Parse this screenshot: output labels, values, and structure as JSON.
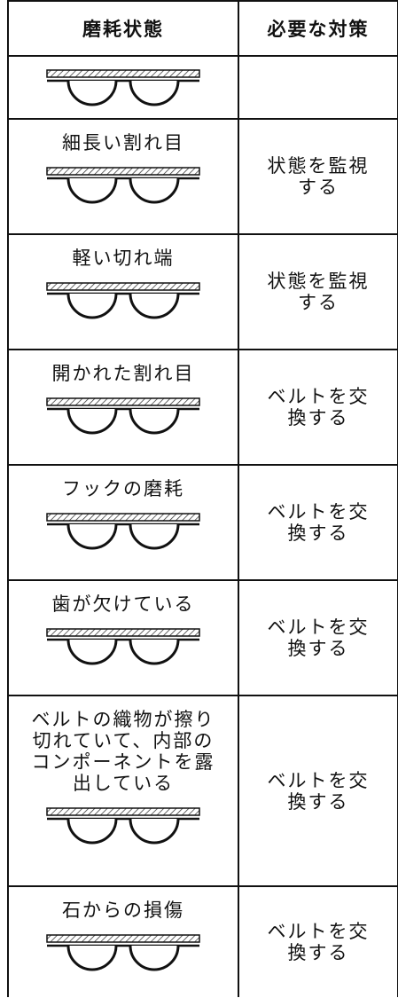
{
  "header": {
    "columns": [
      "磨耗状態",
      "必要な対策"
    ]
  },
  "rows": [
    {},
    {
      "condition": "細長い割れ目",
      "action": "状態を監視する"
    },
    {
      "condition": "軽い切れ端",
      "action": "状態を監視する"
    },
    {
      "condition": "開かれた割れ目",
      "action": "ベルトを交換する"
    },
    {
      "condition": "フックの磨耗",
      "action": "ベルトを交換する"
    },
    {
      "condition": "歯が欠けている",
      "action": "ベルトを交換する"
    },
    {
      "condition": "ベルトの織物が擦り切れていて、内部のコンポーネントを露出している",
      "action": "ベルトを交換する"
    },
    {
      "condition": "石からの損傷",
      "action": "ベルトを交換する"
    }
  ]
}
